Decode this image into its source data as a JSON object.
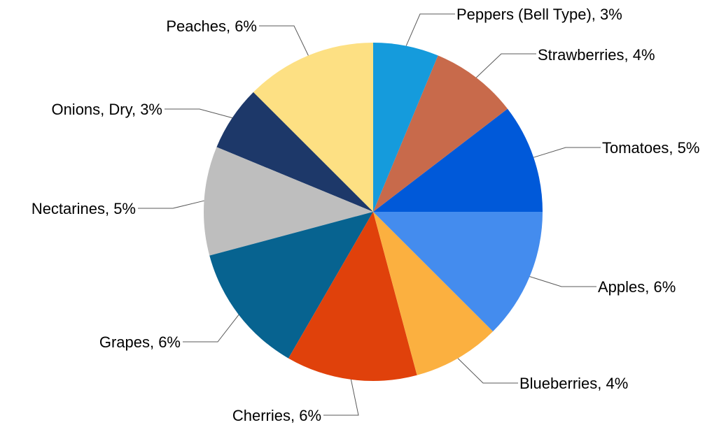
{
  "chart_data": {
    "type": "pie",
    "title": "",
    "start": "right, 3 o'clock, proceeding counterclockwise",
    "slices": [
      {
        "label": "Tomatoes",
        "value": 5,
        "display": "Tomatoes, 5%",
        "color": "#0059D9"
      },
      {
        "label": "Strawberries",
        "value": 4,
        "display": "Strawberries, 4%",
        "color": "#C86A4B"
      },
      {
        "label": "Peppers (Bell Type)",
        "value": 3,
        "display": "Peppers (Bell Type), 3%",
        "color": "#159BDC"
      },
      {
        "label": "Peaches",
        "value": 6,
        "display": "Peaches, 6%",
        "color": "#FDE083"
      },
      {
        "label": "Onions, Dry",
        "value": 3,
        "display": "Onions, Dry, 3%",
        "color": "#1D3869"
      },
      {
        "label": "Nectarines",
        "value": 5,
        "display": "Nectarines, 5%",
        "color": "#BEBEBE"
      },
      {
        "label": "Grapes",
        "value": 6,
        "display": "Grapes, 6%",
        "color": "#076390"
      },
      {
        "label": "Cherries",
        "value": 6,
        "display": "Cherries, 6%",
        "color": "#E0410B"
      },
      {
        "label": "Blueberries",
        "value": 4,
        "display": "Blueberries, 4%",
        "color": "#FBB040"
      },
      {
        "label": "Apples",
        "value": 6,
        "display": "Apples, 6%",
        "color": "#448CEE"
      }
    ]
  }
}
